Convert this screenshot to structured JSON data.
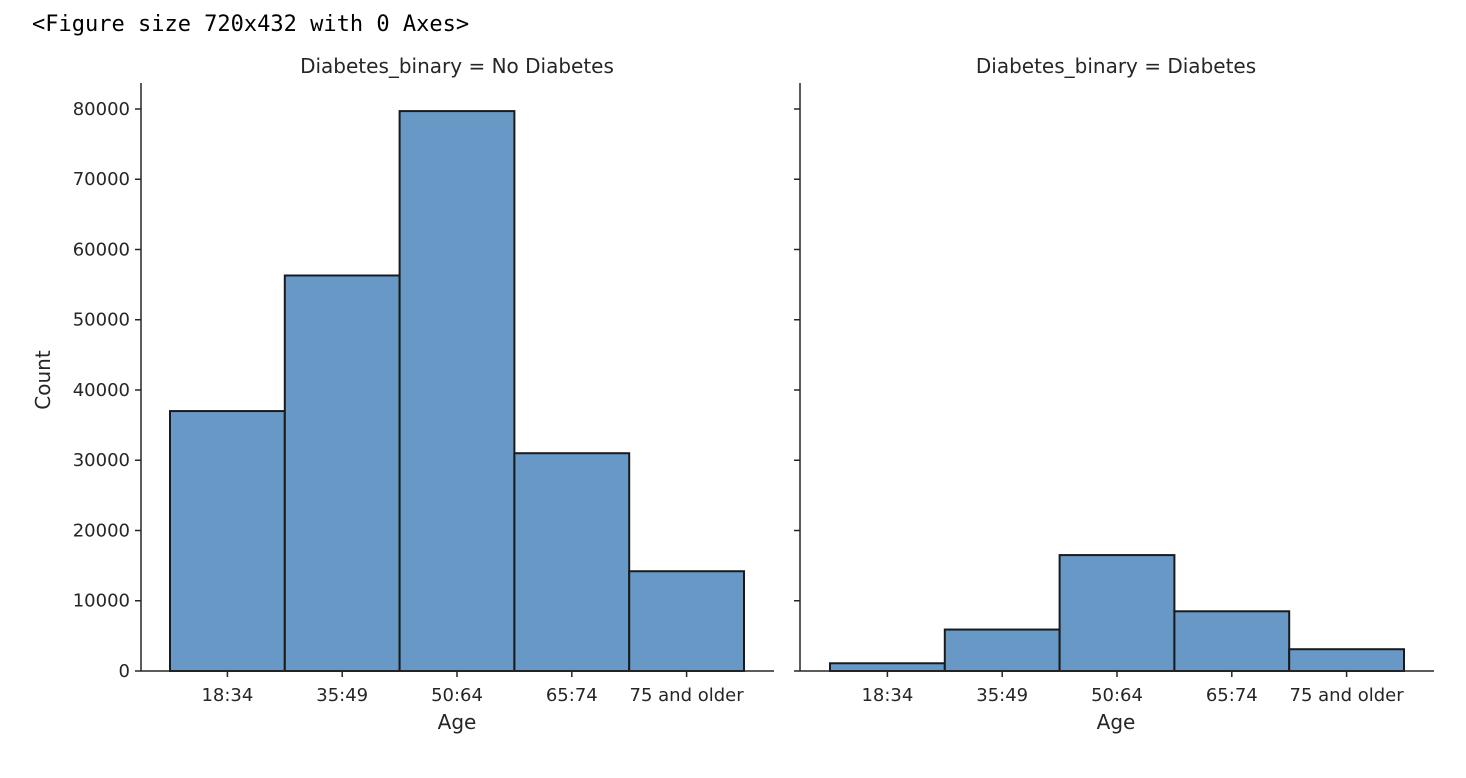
{
  "output_text": "<Figure size 720x432 with 0 Axes>",
  "colors": {
    "bar_fill": "#6899c6",
    "bar_edge": "#1a1a1a",
    "axis": "#262626"
  },
  "chart_data": [
    {
      "type": "bar",
      "title": "Diabetes_binary = No Diabetes",
      "xlabel": "Age",
      "ylabel": "Count",
      "categories": [
        "18:34",
        "35:49",
        "50:64",
        "65:74",
        "75 and older"
      ],
      "values": [
        37000,
        56300,
        79700,
        31000,
        14200
      ],
      "ylim": [
        0,
        83700
      ],
      "yticks": [
        0,
        10000,
        20000,
        30000,
        40000,
        50000,
        60000,
        70000,
        80000
      ],
      "grid": false
    },
    {
      "type": "bar",
      "title": "Diabetes_binary = Diabetes",
      "xlabel": "Age",
      "ylabel": "",
      "categories": [
        "18:34",
        "35:49",
        "50:64",
        "65:74",
        "75 and older"
      ],
      "values": [
        1100,
        5900,
        16500,
        8500,
        3100
      ],
      "ylim": [
        0,
        83700
      ],
      "grid": false
    }
  ]
}
